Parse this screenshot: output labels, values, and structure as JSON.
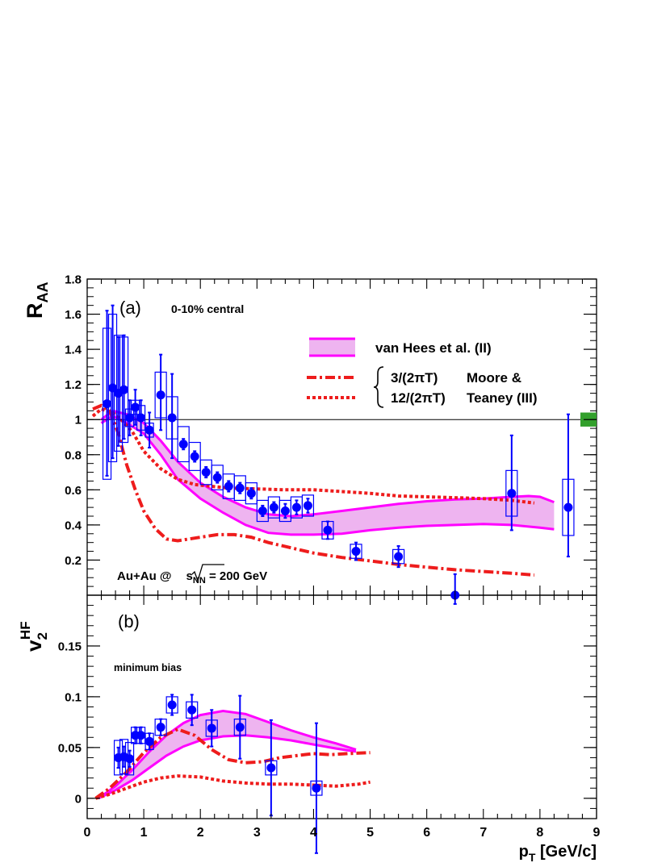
{
  "chart_data": [
    {
      "panel": "(a)",
      "type": "scatter",
      "ylabel": "R_AA",
      "ylim": [
        0,
        1.8
      ],
      "xlim": [
        0,
        9
      ],
      "yticks": [
        "0.2",
        "0.4",
        "0.6",
        "0.8",
        "1",
        "1.2",
        "1.4",
        "1.6",
        "1.8"
      ],
      "annotations": {
        "panel_label": "(a)",
        "centrality": "0-10% central",
        "system": "Au+Au @",
        "energy_symbol": "s",
        "energy_subscript": "NN",
        "energy_value": " = 200 GeV"
      },
      "legend": {
        "band": "van Hees et al. (II)",
        "dashdot": "3/(2πT)",
        "dotted": "12/(2πT)",
        "group1": "Moore &",
        "group2": "Teaney (III)"
      },
      "reference_line": 1,
      "global_uncertainty": [
        0.96,
        1.04
      ],
      "series": [
        {
          "name": "data",
          "points": [
            {
              "x": 0.35,
              "y": 1.09,
              "eu": 0.53,
              "ed": 0.41,
              "sy": 0.43
            },
            {
              "x": 0.45,
              "y": 1.18,
              "eu": 0.47,
              "ed": 0.4,
              "sy": 0.42
            },
            {
              "x": 0.55,
              "y": 1.15,
              "eu": 0.32,
              "ed": 0.3,
              "sy": 0.33
            },
            {
              "x": 0.65,
              "y": 1.17,
              "eu": 0.31,
              "ed": 0.28,
              "sy": 0.3
            },
            {
              "x": 0.75,
              "y": 1.01,
              "eu": 0.1,
              "ed": 0.1,
              "sy": 0.05
            },
            {
              "x": 0.85,
              "y": 1.07,
              "eu": 0.1,
              "ed": 0.1,
              "sy": 0.04
            },
            {
              "x": 0.95,
              "y": 1.01,
              "eu": 0.1,
              "ed": 0.1,
              "sy": 0.07
            },
            {
              "x": 1.1,
              "y": 0.94,
              "eu": 0.1,
              "ed": 0.1,
              "sy": 0.04
            },
            {
              "x": 1.3,
              "y": 1.14,
              "eu": 0.23,
              "ed": 0.2,
              "sy": 0.13
            },
            {
              "x": 1.5,
              "y": 1.01,
              "eu": 0.25,
              "ed": 0.23,
              "sy": 0.12
            },
            {
              "x": 1.7,
              "y": 0.86,
              "eu": 0.03,
              "ed": 0.03,
              "sy": 0.1
            },
            {
              "x": 1.9,
              "y": 0.79,
              "eu": 0.03,
              "ed": 0.03,
              "sy": 0.08
            },
            {
              "x": 2.1,
              "y": 0.7,
              "eu": 0.03,
              "ed": 0.03,
              "sy": 0.07
            },
            {
              "x": 2.3,
              "y": 0.67,
              "eu": 0.03,
              "ed": 0.03,
              "sy": 0.07
            },
            {
              "x": 2.5,
              "y": 0.62,
              "eu": 0.03,
              "ed": 0.03,
              "sy": 0.07
            },
            {
              "x": 2.7,
              "y": 0.61,
              "eu": 0.03,
              "ed": 0.03,
              "sy": 0.07
            },
            {
              "x": 2.9,
              "y": 0.58,
              "eu": 0.03,
              "ed": 0.03,
              "sy": 0.06
            },
            {
              "x": 3.1,
              "y": 0.48,
              "eu": 0.03,
              "ed": 0.03,
              "sy": 0.06
            },
            {
              "x": 3.3,
              "y": 0.5,
              "eu": 0.03,
              "ed": 0.03,
              "sy": 0.06
            },
            {
              "x": 3.5,
              "y": 0.48,
              "eu": 0.04,
              "ed": 0.04,
              "sy": 0.06
            },
            {
              "x": 3.7,
              "y": 0.5,
              "eu": 0.04,
              "ed": 0.04,
              "sy": 0.06
            },
            {
              "x": 3.9,
              "y": 0.51,
              "eu": 0.04,
              "ed": 0.04,
              "sy": 0.06
            },
            {
              "x": 4.25,
              "y": 0.37,
              "eu": 0.05,
              "ed": 0.05,
              "sy": 0.05
            },
            {
              "x": 4.75,
              "y": 0.25,
              "eu": 0.05,
              "ed": 0.05,
              "sy": 0.04
            },
            {
              "x": 5.5,
              "y": 0.22,
              "eu": 0.06,
              "ed": 0.06,
              "sy": 0.04
            },
            {
              "x": 6.5,
              "y": 0.0,
              "eu": 0.12,
              "ed": 0.05,
              "sy": 0.0
            },
            {
              "x": 7.5,
              "y": 0.58,
              "eu": 0.33,
              "ed": 0.21,
              "sy": 0.13
            },
            {
              "x": 8.5,
              "y": 0.5,
              "eu": 0.53,
              "ed": 0.28,
              "sy": 0.16
            }
          ]
        }
      ],
      "theory": {
        "band_upper": [
          [
            0.25,
            1.0
          ],
          [
            0.45,
            1.05
          ],
          [
            0.7,
            1.03
          ],
          [
            1.0,
            0.98
          ],
          [
            1.3,
            0.88
          ],
          [
            1.6,
            0.76
          ],
          [
            2.0,
            0.64
          ],
          [
            2.4,
            0.56
          ],
          [
            2.8,
            0.5
          ],
          [
            3.2,
            0.46
          ],
          [
            3.6,
            0.45
          ],
          [
            4.0,
            0.46
          ],
          [
            4.5,
            0.48
          ],
          [
            5.0,
            0.5
          ],
          [
            5.5,
            0.52
          ],
          [
            6.0,
            0.535
          ],
          [
            6.5,
            0.545
          ],
          [
            7.0,
            0.55
          ],
          [
            7.5,
            0.56
          ],
          [
            7.8,
            0.565
          ],
          [
            8.0,
            0.56
          ],
          [
            8.25,
            0.53
          ]
        ],
        "band_lower": [
          [
            0.25,
            0.98
          ],
          [
            0.45,
            1.02
          ],
          [
            0.7,
            0.98
          ],
          [
            1.0,
            0.92
          ],
          [
            1.3,
            0.8
          ],
          [
            1.6,
            0.66
          ],
          [
            2.0,
            0.55
          ],
          [
            2.4,
            0.47
          ],
          [
            2.8,
            0.4
          ],
          [
            3.2,
            0.355
          ],
          [
            3.6,
            0.345
          ],
          [
            4.0,
            0.345
          ],
          [
            4.5,
            0.35
          ],
          [
            5.0,
            0.37
          ],
          [
            5.5,
            0.385
          ],
          [
            6.0,
            0.395
          ],
          [
            6.5,
            0.4
          ],
          [
            7.0,
            0.405
          ],
          [
            7.5,
            0.4
          ],
          [
            8.0,
            0.385
          ],
          [
            8.25,
            0.375
          ]
        ],
        "dashdot": [
          [
            0.1,
            1.06
          ],
          [
            0.25,
            1.08
          ],
          [
            0.4,
            1.05
          ],
          [
            0.55,
            0.92
          ],
          [
            0.7,
            0.74
          ],
          [
            0.85,
            0.6
          ],
          [
            1.0,
            0.48
          ],
          [
            1.2,
            0.38
          ],
          [
            1.4,
            0.32
          ],
          [
            1.6,
            0.31
          ],
          [
            1.8,
            0.32
          ],
          [
            2.0,
            0.33
          ],
          [
            2.3,
            0.345
          ],
          [
            2.6,
            0.345
          ],
          [
            2.9,
            0.33
          ],
          [
            3.2,
            0.3
          ],
          [
            3.6,
            0.27
          ],
          [
            4.0,
            0.24
          ],
          [
            4.5,
            0.215
          ],
          [
            5.0,
            0.195
          ],
          [
            5.5,
            0.175
          ],
          [
            6.0,
            0.16
          ],
          [
            6.5,
            0.145
          ],
          [
            7.0,
            0.135
          ],
          [
            7.5,
            0.125
          ],
          [
            7.9,
            0.115
          ]
        ],
        "dotted": [
          [
            0.1,
            1.02
          ],
          [
            0.25,
            1.06
          ],
          [
            0.45,
            1.04
          ],
          [
            0.6,
            1.0
          ],
          [
            0.8,
            0.93
          ],
          [
            1.0,
            0.82
          ],
          [
            1.3,
            0.72
          ],
          [
            1.6,
            0.66
          ],
          [
            1.9,
            0.63
          ],
          [
            2.2,
            0.62
          ],
          [
            2.5,
            0.61
          ],
          [
            3.0,
            0.605
          ],
          [
            3.5,
            0.6
          ],
          [
            4.0,
            0.6
          ],
          [
            4.5,
            0.59
          ],
          [
            5.0,
            0.58
          ],
          [
            5.5,
            0.565
          ],
          [
            6.0,
            0.56
          ],
          [
            6.5,
            0.555
          ],
          [
            7.0,
            0.55
          ],
          [
            7.5,
            0.54
          ],
          [
            7.9,
            0.525
          ]
        ]
      }
    },
    {
      "panel": "(b)",
      "type": "scatter",
      "ylabel": "v_2^HF",
      "xlabel": "p_T [GeV/c]",
      "ylim": [
        -0.02,
        0.2
      ],
      "xlim": [
        0,
        9
      ],
      "yticks": [
        "0",
        "0.05",
        "0.1",
        "0.15"
      ],
      "xticks": [
        "0",
        "1",
        "2",
        "3",
        "4",
        "5",
        "6",
        "7",
        "8",
        "9"
      ],
      "annotations": {
        "panel_label": "(b)",
        "label": "minimum bias"
      },
      "series": [
        {
          "name": "data",
          "points": [
            {
              "x": 0.55,
              "y": 0.04,
              "eu": 0.01,
              "ed": 0.01,
              "sy": 0.017
            },
            {
              "x": 0.65,
              "y": 0.041,
              "eu": 0.01,
              "ed": 0.01,
              "sy": 0.017
            },
            {
              "x": 0.75,
              "y": 0.039,
              "eu": 0.008,
              "ed": 0.008,
              "sy": 0.016
            },
            {
              "x": 0.85,
              "y": 0.062,
              "eu": 0.008,
              "ed": 0.008,
              "sy": 0.008
            },
            {
              "x": 0.95,
              "y": 0.062,
              "eu": 0.008,
              "ed": 0.008,
              "sy": 0.008
            },
            {
              "x": 1.1,
              "y": 0.056,
              "eu": 0.008,
              "ed": 0.008,
              "sy": 0.008
            },
            {
              "x": 1.3,
              "y": 0.07,
              "eu": 0.008,
              "ed": 0.008,
              "sy": 0.008
            },
            {
              "x": 1.5,
              "y": 0.092,
              "eu": 0.01,
              "ed": 0.01,
              "sy": 0.008
            },
            {
              "x": 1.85,
              "y": 0.087,
              "eu": 0.015,
              "ed": 0.015,
              "sy": 0.008
            },
            {
              "x": 2.2,
              "y": 0.069,
              "eu": 0.018,
              "ed": 0.018,
              "sy": 0.008
            },
            {
              "x": 2.7,
              "y": 0.07,
              "eu": 0.031,
              "ed": 0.031,
              "sy": 0.008
            },
            {
              "x": 3.25,
              "y": 0.03,
              "eu": 0.047,
              "ed": 0.047,
              "sy": 0.007
            },
            {
              "x": 4.05,
              "y": 0.01,
              "eu": 0.064,
              "ed": 0.064,
              "sy": 0.007
            }
          ]
        }
      ],
      "theory": {
        "band_upper": [
          [
            0.2,
            0.0
          ],
          [
            0.5,
            0.012
          ],
          [
            0.8,
            0.028
          ],
          [
            1.1,
            0.046
          ],
          [
            1.4,
            0.062
          ],
          [
            1.7,
            0.074
          ],
          [
            2.0,
            0.082
          ],
          [
            2.4,
            0.086
          ],
          [
            2.8,
            0.083
          ],
          [
            3.2,
            0.075
          ],
          [
            3.6,
            0.067
          ],
          [
            4.0,
            0.06
          ],
          [
            4.4,
            0.054
          ],
          [
            4.75,
            0.048
          ]
        ],
        "band_lower": [
          [
            0.2,
            0.0
          ],
          [
            0.5,
            0.008
          ],
          [
            0.8,
            0.018
          ],
          [
            1.1,
            0.03
          ],
          [
            1.4,
            0.042
          ],
          [
            1.7,
            0.051
          ],
          [
            2.0,
            0.057
          ],
          [
            2.4,
            0.061
          ],
          [
            2.8,
            0.062
          ],
          [
            3.2,
            0.06
          ],
          [
            3.6,
            0.057
          ],
          [
            4.0,
            0.053
          ],
          [
            4.4,
            0.049
          ],
          [
            4.75,
            0.046
          ]
        ],
        "dashdot": [
          [
            0.15,
            0.0
          ],
          [
            0.4,
            0.01
          ],
          [
            0.7,
            0.026
          ],
          [
            1.0,
            0.045
          ],
          [
            1.3,
            0.06
          ],
          [
            1.6,
            0.068
          ],
          [
            1.9,
            0.062
          ],
          [
            2.2,
            0.048
          ],
          [
            2.5,
            0.038
          ],
          [
            2.8,
            0.035
          ],
          [
            3.1,
            0.036
          ],
          [
            3.4,
            0.04
          ],
          [
            3.7,
            0.042
          ],
          [
            4.0,
            0.044
          ],
          [
            4.3,
            0.043
          ],
          [
            4.6,
            0.044
          ],
          [
            5.0,
            0.045
          ]
        ],
        "dotted": [
          [
            0.15,
            0.0
          ],
          [
            0.4,
            0.004
          ],
          [
            0.7,
            0.01
          ],
          [
            1.0,
            0.016
          ],
          [
            1.3,
            0.02
          ],
          [
            1.6,
            0.022
          ],
          [
            2.0,
            0.021
          ],
          [
            2.4,
            0.017
          ],
          [
            2.8,
            0.015
          ],
          [
            3.2,
            0.014
          ],
          [
            3.6,
            0.014
          ],
          [
            4.0,
            0.013
          ],
          [
            4.4,
            0.012
          ],
          [
            4.8,
            0.014
          ],
          [
            5.0,
            0.016
          ]
        ]
      }
    }
  ],
  "colors": {
    "data": "#0000ff",
    "band_fill": "#eeb4f0",
    "band_line": "#ff00ff",
    "theory": "#ee1c1c",
    "global_box": "#33a02c"
  }
}
